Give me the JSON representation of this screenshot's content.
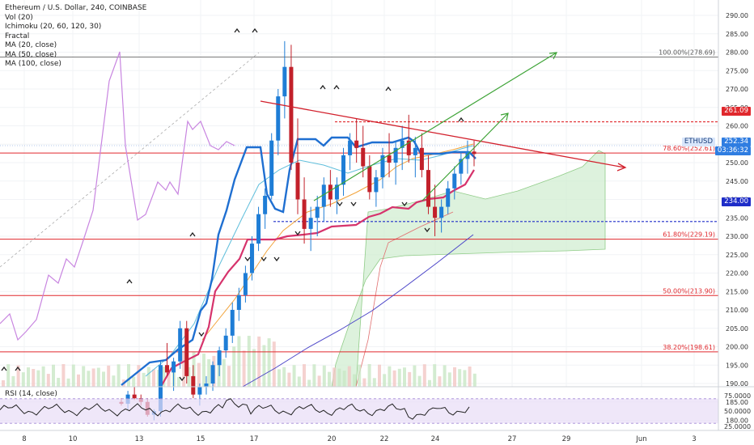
{
  "legend": {
    "title": "Ethereum / U.S. Dollar, 240, COINBASE",
    "lines": [
      "Vol (20)",
      "Ichimoku (20, 60, 120, 30)",
      "Fractal",
      "MA (20, close)",
      "MA (50, close)",
      "MA (100, close)"
    ]
  },
  "rsi_label": "RSI (14, close)",
  "price_axis": {
    "labels": [
      "290.00",
      "285.00",
      "280.00",
      "275.00",
      "270.00",
      "265.00",
      "260.00",
      "255.00",
      "250.00",
      "245.00",
      "240.00",
      "235.00",
      "230.00",
      "225.00",
      "220.00",
      "215.00",
      "210.00",
      "205.00",
      "200.00",
      "195.00",
      "190.00",
      "185.00",
      "180.00"
    ],
    "values": [
      290,
      285,
      280,
      275,
      270,
      265,
      260,
      255,
      250,
      245,
      240,
      235,
      230,
      225,
      220,
      215,
      210,
      205,
      200,
      195,
      190,
      185,
      180
    ]
  },
  "rsi_axis": {
    "labels": [
      "75.0000",
      "50.0000",
      "25.0000"
    ],
    "values": [
      75,
      50,
      25
    ]
  },
  "time_axis": {
    "labels": [
      "8",
      "10",
      "13",
      "15",
      "17",
      "20",
      "22",
      "24",
      "27",
      "29",
      "Jun",
      "3"
    ]
  },
  "price_tags": {
    "resistance": "261.09",
    "current_symbol": "ETHUSD",
    "current": "252.34",
    "countdown": "03:36:32",
    "support": "234.00"
  },
  "fib_levels": [
    {
      "label": "100.00%(278.69)",
      "value": 278.69
    },
    {
      "label": "78.60%(252.61)",
      "value": 252.61
    },
    {
      "label": "61.80%(229.19)",
      "value": 229.19
    },
    {
      "label": "50.00%(213.90)",
      "value": 213.9
    },
    {
      "label": "38.20%(198.61)",
      "value": 198.61
    }
  ],
  "colors": {
    "up_candle": "#1e7dd6",
    "down_candle": "#c2202a",
    "rsi_band": "#e8ddf7",
    "fib_red": "#e0282d",
    "kijun": "#1f6fd1",
    "tenkan": "#d6336c",
    "lagging": "#c885e0",
    "cloud": "#cfeccf",
    "trend_green": "#3da336",
    "triangle_red": "#d2202c",
    "ma_orange": "#f2a33a",
    "ma_cyan": "#5fbedb",
    "ma_purple": "#4b45c8"
  },
  "chart_data": {
    "type": "candlestick",
    "title": "Ethereum / U.S. Dollar, 240, COINBASE",
    "ylim": [
      178,
      292
    ],
    "x": [
      "8",
      "10",
      "13",
      "15",
      "17",
      "20",
      "22",
      "24",
      "27",
      "29",
      "Jun",
      "3"
    ],
    "candles": [
      [
        185,
        186,
        184,
        184.5
      ],
      [
        184.5,
        188,
        183,
        187
      ],
      [
        187,
        189,
        185.5,
        186
      ],
      [
        186,
        187,
        184,
        185
      ],
      [
        185,
        186,
        181,
        181.5
      ],
      [
        181.5,
        183,
        180,
        182.5
      ],
      [
        182.5,
        196,
        181,
        195
      ],
      [
        195,
        201,
        192,
        193
      ],
      [
        193,
        197,
        188,
        196
      ],
      [
        196,
        207,
        194,
        205
      ],
      [
        205,
        207,
        190,
        192
      ],
      [
        192,
        195,
        186,
        187
      ],
      [
        187,
        190,
        184,
        189
      ],
      [
        189,
        192,
        187,
        190
      ],
      [
        190,
        196,
        188,
        195
      ],
      [
        195,
        200,
        192,
        199
      ],
      [
        199,
        205,
        197,
        203
      ],
      [
        203,
        212,
        201,
        210
      ],
      [
        210,
        216,
        207,
        214
      ],
      [
        214,
        222,
        212,
        220
      ],
      [
        220,
        230,
        218,
        228
      ],
      [
        228,
        238,
        226,
        236
      ],
      [
        236,
        243,
        232,
        241
      ],
      [
        241,
        258,
        240,
        256
      ],
      [
        256,
        270,
        252,
        268
      ],
      [
        268,
        283,
        262,
        276
      ],
      [
        276,
        282,
        248,
        250
      ],
      [
        250,
        262,
        236,
        240
      ],
      [
        240,
        246,
        228,
        232
      ],
      [
        232,
        238,
        226,
        235
      ],
      [
        235,
        241,
        230,
        238
      ],
      [
        238,
        246,
        234,
        244
      ],
      [
        244,
        248,
        238,
        240
      ],
      [
        240,
        246,
        236,
        244
      ],
      [
        244,
        254,
        241,
        252
      ],
      [
        252,
        258,
        248,
        256
      ],
      [
        256,
        262,
        250,
        254
      ],
      [
        254,
        260,
        246,
        249
      ],
      [
        249,
        252,
        240,
        242
      ],
      [
        242,
        248,
        238,
        246
      ],
      [
        246,
        254,
        243,
        252
      ],
      [
        252,
        258,
        246,
        250
      ],
      [
        250,
        256,
        244,
        254
      ],
      [
        254,
        260,
        248,
        256
      ],
      [
        256,
        263,
        250,
        252
      ],
      [
        252,
        257,
        246,
        254
      ],
      [
        254,
        258,
        246,
        248
      ],
      [
        248,
        252,
        236,
        238
      ],
      [
        238,
        244,
        230,
        235
      ],
      [
        235,
        240,
        231,
        238
      ],
      [
        238,
        245,
        236,
        243
      ],
      [
        243,
        249,
        240,
        247
      ],
      [
        247,
        253,
        244,
        251
      ],
      [
        251,
        256,
        247,
        253
      ],
      [
        253,
        256,
        249,
        252.34
      ]
    ],
    "fib_levels": [
      278.69,
      252.61,
      229.19,
      213.9,
      198.61
    ],
    "horizontal_levels": {
      "resistance": 261.09,
      "support": 234.0
    },
    "rsi": {
      "ylim": [
        20,
        80
      ],
      "band": [
        30,
        70
      ]
    }
  }
}
